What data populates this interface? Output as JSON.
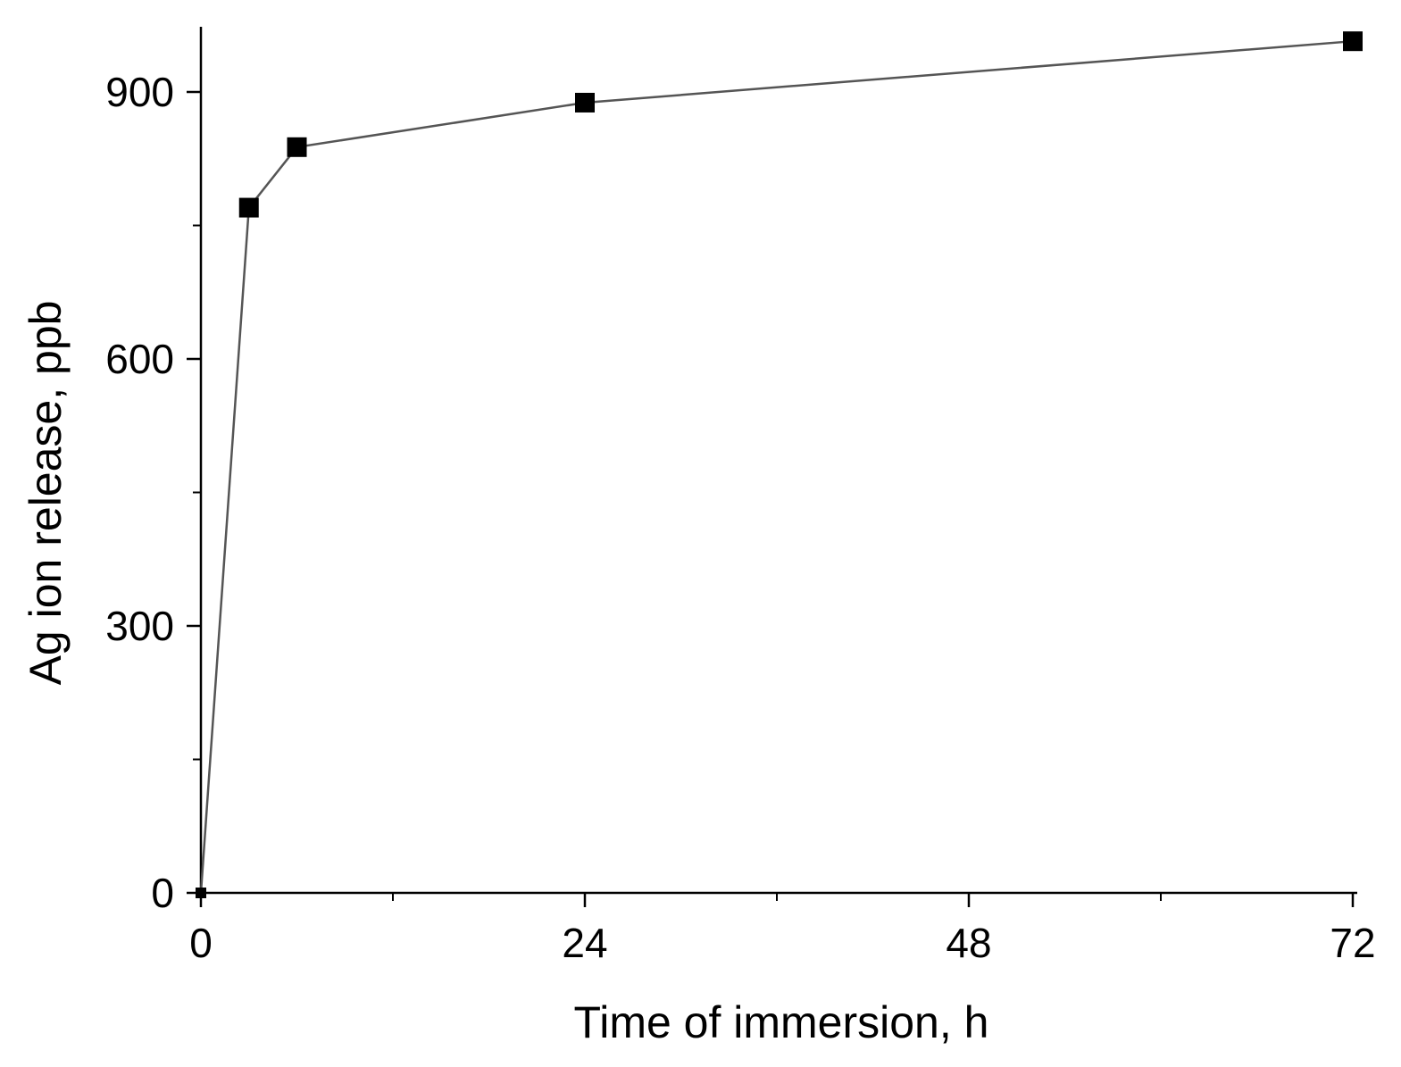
{
  "chart_data": {
    "type": "line",
    "title": "",
    "xlabel": "Time of immersion, h",
    "ylabel": "Ag ion release, ppb",
    "xlim": [
      0,
      72
    ],
    "ylim": [
      0,
      975
    ],
    "x_ticks": [
      0,
      24,
      48,
      72
    ],
    "x_tick_labels": [
      "0",
      "24",
      "48",
      "72"
    ],
    "x_minor_ticks": [
      12,
      36,
      60
    ],
    "y_ticks": [
      0,
      300,
      600,
      900
    ],
    "y_tick_labels": [
      "0",
      "300",
      "600",
      "900"
    ],
    "y_minor_ticks": [
      150,
      450,
      750
    ],
    "grid": false,
    "legend": "none",
    "series": [
      {
        "x": [
          0,
          3,
          6,
          24,
          72
        ],
        "y": [
          0,
          770,
          838,
          888,
          957
        ],
        "marker": "square",
        "color": "#000000",
        "line_color": "#555555"
      }
    ]
  }
}
